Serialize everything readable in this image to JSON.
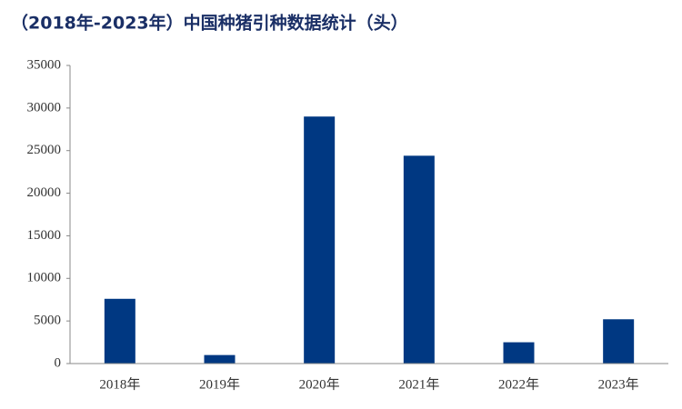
{
  "chart_data": {
    "type": "bar",
    "title": "（2018年-2023年）中国种猪引种数据统计（头）",
    "categories": [
      "2018年",
      "2019年",
      "2020年",
      "2021年",
      "2022年",
      "2023年"
    ],
    "values": [
      7600,
      1000,
      29000,
      24400,
      2500,
      5200
    ],
    "color": "#003882",
    "ylim": [
      0,
      35000
    ],
    "yticks": [
      0,
      5000,
      10000,
      15000,
      20000,
      25000,
      30000,
      35000
    ],
    "grid": false
  }
}
